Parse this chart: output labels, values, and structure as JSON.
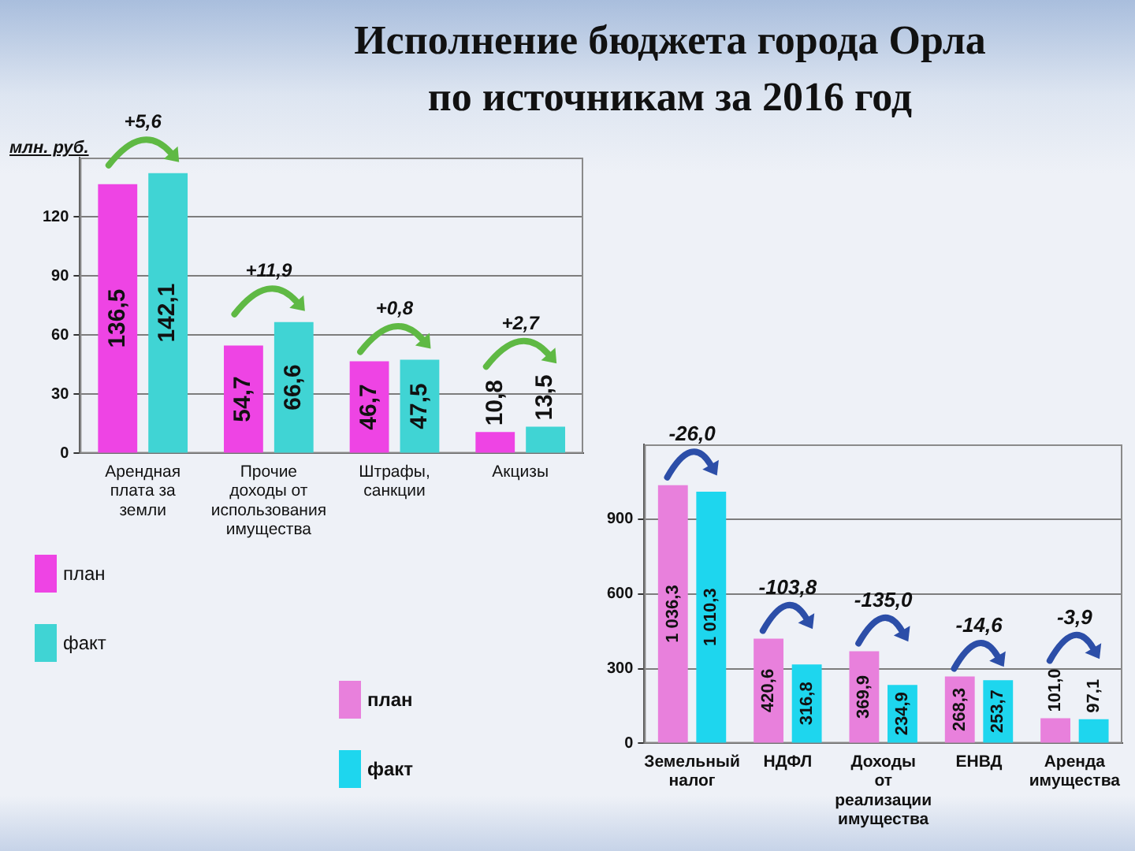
{
  "chart_data": [
    {
      "type": "bar",
      "title": "Исполнение бюджета города Орла\nпо источникам за 2016 год",
      "ylabel": "млн. руб.",
      "categories": [
        "Арендная плата за земли",
        "Прочие доходы от использования имущества",
        "Штрафы, санкции",
        "Акцизы"
      ],
      "series": [
        {
          "name": "план",
          "color": "#ee44e4",
          "values": [
            136.5,
            54.7,
            46.7,
            10.8
          ],
          "value_labels": [
            "136,5",
            "54,7",
            "46,7",
            "10,8"
          ]
        },
        {
          "name": "факт",
          "color": "#40d4d4",
          "values": [
            142.1,
            66.6,
            47.5,
            13.5
          ],
          "value_labels": [
            "142,1",
            "66,6",
            "47,5",
            "13,5"
          ]
        }
      ],
      "ylim": [
        0,
        150
      ],
      "yticks": [
        0,
        30,
        60,
        90,
        120
      ],
      "grid": "y",
      "legend": "bottom left",
      "annotations": [
        "+5,6",
        "+11,9",
        "+0,8",
        "+2,7"
      ]
    },
    {
      "type": "bar",
      "categories": [
        "Земельный налог",
        "НДФЛ",
        "Доходы от реализации имущества",
        "ЕНВД",
        "Аренда имущества"
      ],
      "series": [
        {
          "name": "план",
          "color": "#e880dc",
          "values": [
            1036.3,
            420.6,
            369.9,
            268.3,
            101.0
          ],
          "value_labels": [
            "1 036,3",
            "420,6",
            "369,9",
            "268,3",
            "101,0"
          ]
        },
        {
          "name": "факт",
          "color": "#1ed6ee",
          "values": [
            1010.3,
            316.8,
            234.9,
            253.7,
            97.1
          ],
          "value_labels": [
            "1 010,3",
            "316,8",
            "234,9",
            "253,7",
            "97,1"
          ]
        }
      ],
      "ylim": [
        0,
        1200
      ],
      "yticks": [
        0,
        300,
        600,
        900
      ],
      "grid": "y",
      "legend": "left",
      "annotations": [
        "-26,0",
        "-103,8",
        "-135,0",
        "-14,6",
        "-3,9"
      ]
    }
  ]
}
